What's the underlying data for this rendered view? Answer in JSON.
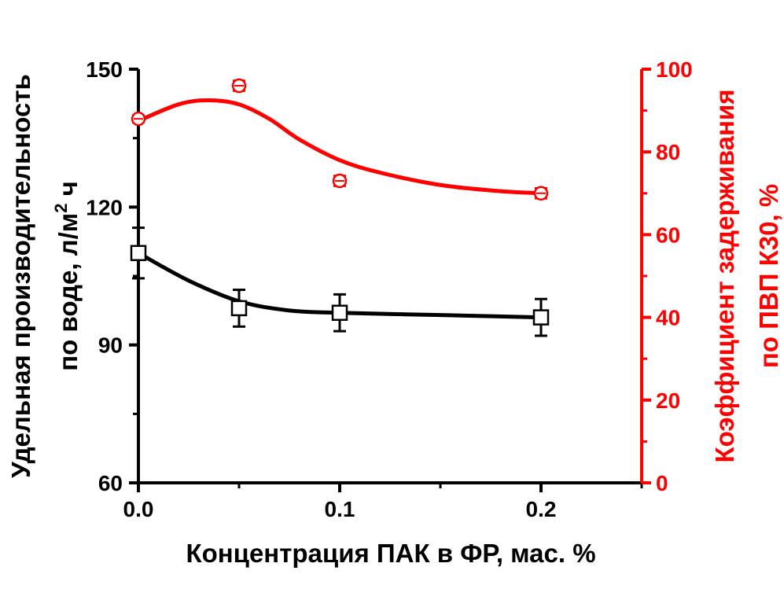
{
  "chart_data": {
    "type": "scatter",
    "xlabel": "Концентрация ПАК в ФР, мас. %",
    "ylabel_left": {
      "line1": "Удельная производительность",
      "line2_prefix": "по воде, л/м",
      "line2_sup": "2",
      "line2_suffix": " ч"
    },
    "ylabel_right": {
      "line1": "Коэффициент задерживания",
      "line2": "по ПВП К30, %"
    },
    "xlim": [
      0,
      0.25
    ],
    "ylim_left": [
      60,
      150
    ],
    "ylim_right": [
      0,
      100
    ],
    "x_ticks": [
      "0.0",
      "0.1",
      "0.2"
    ],
    "y_left_ticks": [
      "60",
      "90",
      "120",
      "150"
    ],
    "y_right_ticks": [
      "0",
      "20",
      "40",
      "60",
      "80",
      "100"
    ],
    "grid": false,
    "legend": "none",
    "series": [
      {
        "axis": "left",
        "color": "#000000",
        "marker": "square",
        "x": [
          0.0,
          0.05,
          0.1,
          0.2
        ],
        "y": [
          110,
          98,
          97,
          96
        ],
        "error": [
          5.5,
          4,
          4,
          4
        ],
        "fit_curve": [
          [
            0.0,
            110
          ],
          [
            0.025,
            104
          ],
          [
            0.05,
            99.5
          ],
          [
            0.075,
            97.5
          ],
          [
            0.1,
            97
          ],
          [
            0.15,
            96.5
          ],
          [
            0.2,
            96
          ]
        ]
      },
      {
        "axis": "right",
        "color": "#ff0000",
        "marker": "circle",
        "x": [
          0.0,
          0.05,
          0.1,
          0.2
        ],
        "y": [
          88,
          96,
          73,
          70
        ],
        "error": [
          0.8,
          1.2,
          1.2,
          1.2
        ],
        "fit_curve": [
          [
            0.0,
            87.5
          ],
          [
            0.02,
            91.5
          ],
          [
            0.035,
            92.5
          ],
          [
            0.05,
            91.5
          ],
          [
            0.065,
            88
          ],
          [
            0.08,
            83
          ],
          [
            0.1,
            78
          ],
          [
            0.12,
            75
          ],
          [
            0.15,
            72
          ],
          [
            0.18,
            70.5
          ],
          [
            0.2,
            70
          ]
        ]
      }
    ]
  }
}
